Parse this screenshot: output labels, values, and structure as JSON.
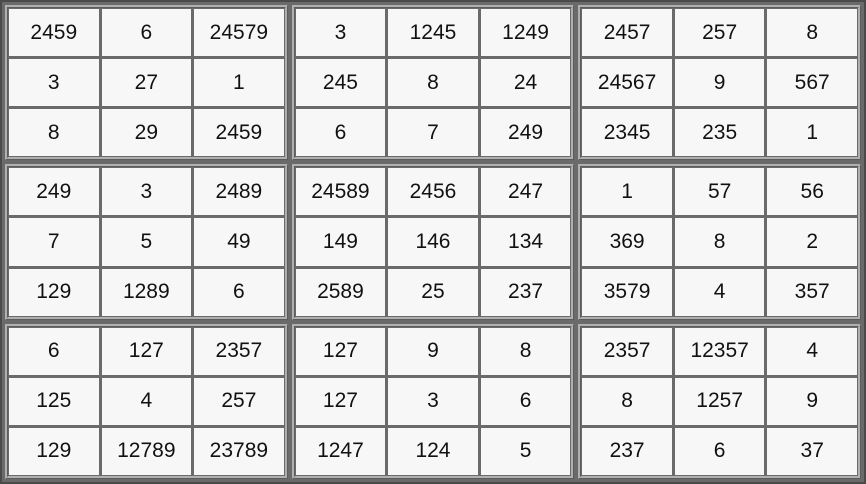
{
  "boxes": [
    [
      "2459",
      "6",
      "24579",
      "3",
      "27",
      "1",
      "8",
      "29",
      "2459"
    ],
    [
      "3",
      "1245",
      "1249",
      "245",
      "8",
      "24",
      "6",
      "7",
      "249"
    ],
    [
      "2457",
      "257",
      "8",
      "24567",
      "9",
      "567",
      "2345",
      "235",
      "1"
    ],
    [
      "249",
      "3",
      "2489",
      "7",
      "5",
      "49",
      "129",
      "1289",
      "6"
    ],
    [
      "24589",
      "2456",
      "247",
      "149",
      "146",
      "134",
      "2589",
      "25",
      "237"
    ],
    [
      "1",
      "57",
      "56",
      "369",
      "8",
      "2",
      "3579",
      "4",
      "357"
    ],
    [
      "6",
      "127",
      "2357",
      "125",
      "4",
      "257",
      "129",
      "12789",
      "23789"
    ],
    [
      "127",
      "9",
      "8",
      "127",
      "3",
      "6",
      "1247",
      "124",
      "5"
    ],
    [
      "2357",
      "12357",
      "4",
      "8",
      "1257",
      "9",
      "237",
      "6",
      "37"
    ]
  ]
}
